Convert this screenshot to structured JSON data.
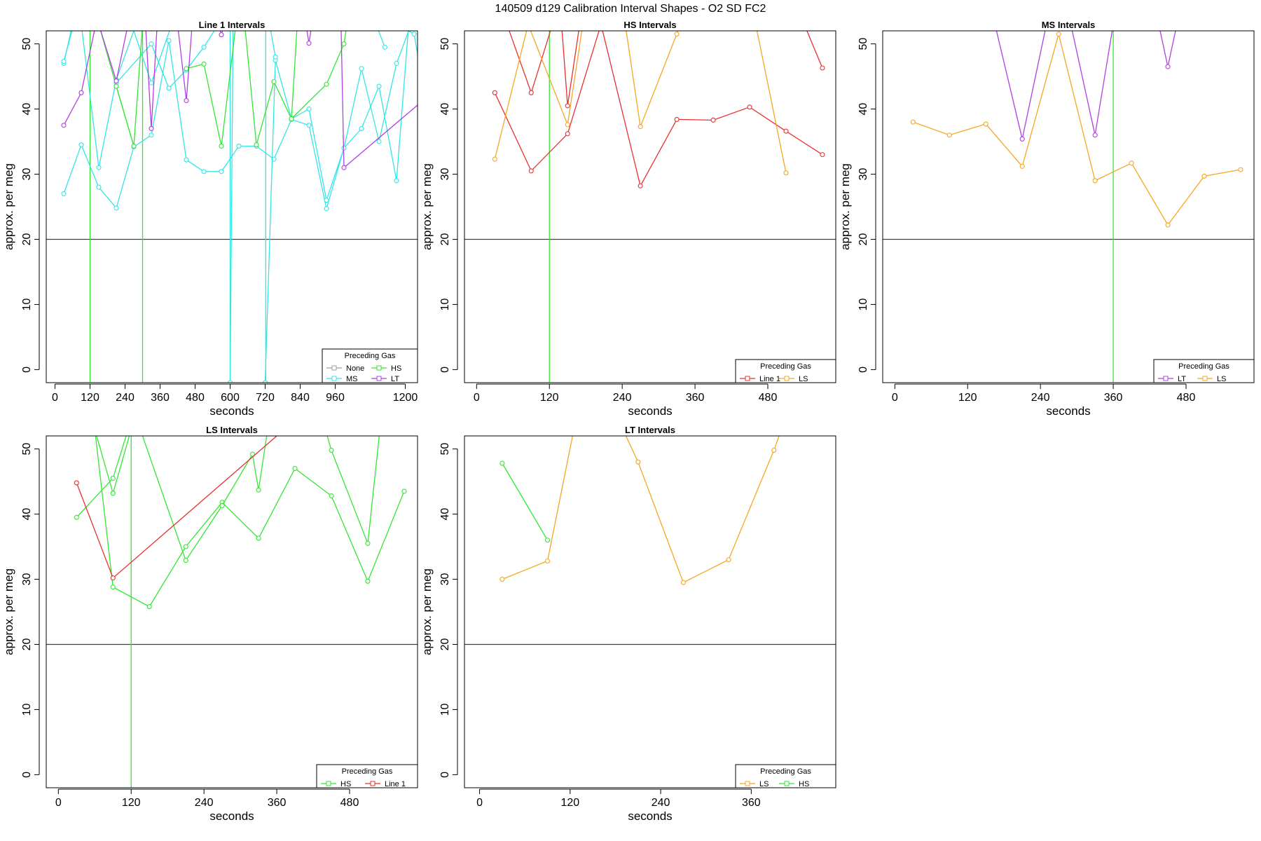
{
  "figure": {
    "title": "140509   d129   Calibration Interval Shapes - O2 SD FC2"
  },
  "colors": {
    "None": "#9e9e9e",
    "HS": "#33e633",
    "MS": "#33e6e6",
    "LT": "#b040e0",
    "Line 1": "#e83030",
    "LS": "#f5a623",
    "axis": "#000000",
    "refline": "#404040"
  },
  "chart_data": [
    {
      "type": "line",
      "title": "Line 1 Intervals",
      "xlabel": "seconds",
      "ylabel": "approx. per meg",
      "xlim": [
        -30,
        1242
      ],
      "ylim": [
        -2,
        52
      ],
      "xticks": [
        0,
        120,
        240,
        360,
        480,
        600,
        720,
        840,
        960,
        1200
      ],
      "yticks": [
        0,
        10,
        20,
        30,
        40,
        50
      ],
      "hline": 20,
      "legend": {
        "title": "Preceding Gas",
        "position": "bottom-right",
        "columns": 2,
        "entries": [
          "None",
          "HS",
          "MS",
          "LT"
        ]
      },
      "vlines": [
        {
          "x": 120,
          "color": "HS"
        },
        {
          "x": 300,
          "color": "HS"
        },
        {
          "x": 600,
          "color": "MS"
        },
        {
          "x": 722,
          "color": "MS"
        }
      ],
      "series": [
        {
          "name": "MS",
          "x": [
            30,
            60
          ],
          "y": [
            47,
            53
          ]
        },
        {
          "name": "MS",
          "x": [
            30,
            58
          ],
          "y": [
            47.3,
            52
          ]
        },
        {
          "name": "MS",
          "x": [
            30,
            90,
            150,
            210,
            270,
            330,
            390,
            450,
            510,
            570,
            630
          ],
          "y": [
            27,
            34.5,
            28,
            24.8,
            34.2,
            36,
            50.5,
            32.2,
            30.4,
            30.4,
            34.3
          ]
        },
        {
          "name": "MS",
          "x": [
            90,
            150,
            210,
            270,
            330,
            400
          ],
          "y": [
            53,
            31,
            44.5,
            52,
            44,
            53
          ]
        },
        {
          "name": "MS",
          "x": [
            210,
            330,
            390,
            450,
            510,
            560
          ],
          "y": [
            44,
            50,
            43.2,
            46,
            49.5,
            53
          ]
        },
        {
          "name": "MS",
          "x": [
            630,
            690,
            750,
            810,
            870,
            930,
            990,
            1050,
            1110,
            1170,
            1220
          ],
          "y": [
            34.3,
            34.3,
            32.3,
            38.4,
            37.5,
            24.7,
            34,
            46.2,
            35,
            47,
            53
          ]
        },
        {
          "name": "MS",
          "x": [
            600,
            610
          ],
          "y": [
            -2,
            53
          ]
        },
        {
          "name": "MS",
          "x": [
            720,
            755,
            810,
            870,
            930,
            990,
            1050,
            1110,
            1170,
            1210,
            1230,
            1242
          ],
          "y": [
            -2,
            47.5,
            38.5,
            40,
            26,
            34,
            37,
            43.5,
            29,
            52,
            51.5,
            48.5
          ]
        },
        {
          "name": "MS",
          "x": [
            735,
            755
          ],
          "y": [
            53,
            48
          ]
        },
        {
          "name": "MS",
          "x": [
            1100,
            1130
          ],
          "y": [
            53,
            49.5
          ]
        },
        {
          "name": "HS",
          "x": [
            150,
            210,
            270,
            300
          ],
          "y": [
            53,
            43.5,
            34.3,
            53
          ]
        },
        {
          "name": "HS",
          "x": [
            210,
            270
          ],
          "y": [
            43.5,
            34.3
          ]
        },
        {
          "name": "HS",
          "x": [
            450,
            510,
            570,
            620
          ],
          "y": [
            46.2,
            46.9,
            34.3,
            53
          ]
        },
        {
          "name": "HS",
          "x": [
            650,
            690,
            750,
            810,
            930,
            990,
            1000
          ],
          "y": [
            53,
            34.5,
            44.2,
            38.5,
            43.8,
            50,
            53
          ]
        },
        {
          "name": "HS",
          "x": [
            810,
            830
          ],
          "y": [
            38.5,
            53
          ]
        },
        {
          "name": "LT",
          "x": [
            30,
            90,
            140
          ],
          "y": [
            37.5,
            42.5,
            53
          ]
        },
        {
          "name": "LT",
          "x": [
            150,
            210,
            250
          ],
          "y": [
            53,
            44.3,
            53
          ]
        },
        {
          "name": "LT",
          "x": [
            310,
            330,
            350
          ],
          "y": [
            53,
            37,
            53
          ]
        },
        {
          "name": "LT",
          "x": [
            420,
            450,
            470
          ],
          "y": [
            53,
            41.3,
            53
          ]
        },
        {
          "name": "LT",
          "x": [
            560,
            570,
            580
          ],
          "y": [
            53,
            51.4,
            53
          ]
        },
        {
          "name": "LT",
          "x": [
            860,
            870,
            880
          ],
          "y": [
            53,
            50.1,
            53
          ]
        },
        {
          "name": "LT",
          "x": [
            980,
            990,
            1242
          ],
          "y": [
            53,
            31,
            40.6
          ]
        }
      ]
    },
    {
      "type": "line",
      "title": "HS Intervals",
      "xlabel": "seconds",
      "ylabel": "approx. per meg",
      "xlim": [
        -20,
        592
      ],
      "ylim": [
        -2,
        52
      ],
      "xticks": [
        0,
        120,
        240,
        360,
        480
      ],
      "yticks": [
        0,
        10,
        20,
        30,
        40,
        50
      ],
      "hline": 20,
      "legend": {
        "title": "Preceding Gas",
        "position": "bottom-right",
        "columns": 2,
        "entries": [
          "Line 1",
          "LS"
        ]
      },
      "vlines": [
        {
          "x": 120,
          "color": "HS"
        }
      ],
      "series": [
        {
          "name": "Line 1",
          "x": [
            30,
            90,
            150,
            205,
            270,
            330,
            390,
            450,
            510,
            570
          ],
          "y": [
            42.5,
            30.5,
            36.2,
            53,
            28.2,
            38.4,
            38.3,
            40.3,
            36.6,
            33
          ]
        },
        {
          "name": "Line 1",
          "x": [
            50,
            90,
            125
          ],
          "y": [
            53,
            42.5,
            53
          ]
        },
        {
          "name": "Line 1",
          "x": [
            140,
            150,
            170
          ],
          "y": [
            53,
            40.5,
            53
          ]
        },
        {
          "name": "Line 1",
          "x": [
            540,
            570
          ],
          "y": [
            53,
            46.3
          ]
        },
        {
          "name": "LS",
          "x": [
            30,
            85
          ],
          "y": [
            32.3,
            53
          ]
        },
        {
          "name": "LS",
          "x": [
            85,
            150,
            175
          ],
          "y": [
            53,
            37.6,
            53
          ]
        },
        {
          "name": "LS",
          "x": [
            245,
            270,
            330,
            335
          ],
          "y": [
            53,
            37.3,
            51.5,
            53
          ]
        },
        {
          "name": "LS",
          "x": [
            460,
            510
          ],
          "y": [
            53,
            30.2
          ]
        }
      ]
    },
    {
      "type": "line",
      "title": "MS Intervals",
      "xlabel": "seconds",
      "ylabel": "approx. per meg",
      "xlim": [
        -20,
        592
      ],
      "ylim": [
        -2,
        52
      ],
      "xticks": [
        0,
        120,
        240,
        360,
        480
      ],
      "yticks": [
        0,
        10,
        20,
        30,
        40,
        50
      ],
      "hline": 20,
      "legend": {
        "title": "Preceding Gas",
        "position": "bottom-right",
        "columns": 2,
        "entries": [
          "LT",
          "LS"
        ]
      },
      "vlines": [
        {
          "x": 360,
          "color": "HS"
        }
      ],
      "series": [
        {
          "name": "LS",
          "x": [
            30,
            90,
            150,
            210,
            270,
            330,
            390,
            450,
            510,
            570
          ],
          "y": [
            38,
            36,
            37.7,
            31.2,
            51.5,
            29,
            31.7,
            22.2,
            29.7,
            30.7
          ]
        },
        {
          "name": "LT",
          "x": [
            165,
            210,
            250
          ],
          "y": [
            53,
            35.4,
            53
          ]
        },
        {
          "name": "LT",
          "x": [
            290,
            330,
            360
          ],
          "y": [
            53,
            36,
            53
          ]
        },
        {
          "name": "LT",
          "x": [
            435,
            450,
            465
          ],
          "y": [
            53,
            46.5,
            53
          ]
        }
      ]
    },
    {
      "type": "line",
      "title": "LS Intervals",
      "xlabel": "seconds",
      "ylabel": "approx. per meg",
      "xlim": [
        -20,
        592
      ],
      "ylim": [
        -2,
        52
      ],
      "xticks": [
        0,
        120,
        240,
        360,
        480
      ],
      "yticks": [
        0,
        10,
        20,
        30,
        40,
        50
      ],
      "hline": 20,
      "legend": {
        "title": "Preceding Gas",
        "position": "bottom-right",
        "columns": 2,
        "entries": [
          "HS",
          "Line 1"
        ]
      },
      "vlines": [
        {
          "x": 120,
          "color": "HS"
        }
      ],
      "series": [
        {
          "name": "HS",
          "x": [
            30,
            90,
            115
          ],
          "y": [
            39.5,
            45.5,
            53
          ]
        },
        {
          "name": "HS",
          "x": [
            60,
            90,
            120
          ],
          "y": [
            53,
            43.2,
            53
          ]
        },
        {
          "name": "HS",
          "x": [
            60,
            90,
            150,
            210,
            270,
            330,
            390,
            450,
            510,
            570
          ],
          "y": [
            53,
            28.8,
            25.8,
            35,
            41.8,
            36.3,
            47,
            42.8,
            29.7,
            43.5
          ]
        },
        {
          "name": "HS",
          "x": [
            135,
            210,
            270,
            320,
            330,
            345
          ],
          "y": [
            53,
            32.9,
            41.3,
            49.2,
            43.7,
            53
          ]
        },
        {
          "name": "HS",
          "x": [
            440,
            450,
            510,
            530
          ],
          "y": [
            53,
            49.8,
            35.5,
            53
          ]
        },
        {
          "name": "Line 1",
          "x": [
            30,
            90,
            360
          ],
          "y": [
            44.8,
            30.2,
            52
          ]
        }
      ]
    },
    {
      "type": "line",
      "title": "LT Intervals",
      "xlabel": "seconds",
      "ylabel": "approx. per meg",
      "xlim": [
        -20,
        472
      ],
      "ylim": [
        -2,
        52
      ],
      "xticks": [
        0,
        120,
        240,
        360
      ],
      "yticks": [
        0,
        10,
        20,
        30,
        40,
        50
      ],
      "hline": 20,
      "legend": {
        "title": "Preceding Gas",
        "position": "bottom-right",
        "columns": 2,
        "entries": [
          "LS",
          "HS"
        ]
      },
      "vlines": [],
      "series": [
        {
          "name": "HS",
          "x": [
            30,
            90
          ],
          "y": [
            47.8,
            36
          ]
        },
        {
          "name": "LS",
          "x": [
            30,
            90,
            125
          ],
          "y": [
            30,
            32.8,
            53
          ]
        },
        {
          "name": "LS",
          "x": [
            190,
            210,
            270,
            330,
            390,
            400
          ],
          "y": [
            53,
            48,
            29.5,
            33,
            49.8,
            53
          ]
        }
      ]
    }
  ]
}
